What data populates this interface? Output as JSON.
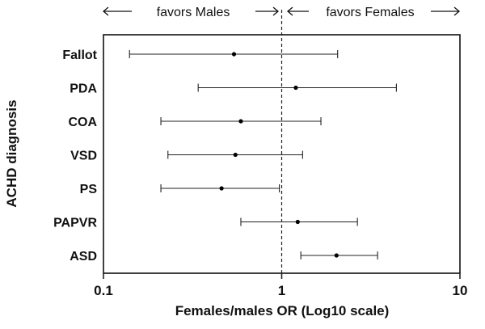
{
  "chart_data": {
    "type": "forest",
    "title": "",
    "xlabel": "Females/males OR (Log10 scale)",
    "ylabel": "ACHD diagnosis",
    "x_scale": "log10",
    "xlim": [
      0.1,
      10
    ],
    "x_ticks": [
      0.1,
      1,
      10
    ],
    "x_tick_labels": [
      "0.1",
      "1",
      "10"
    ],
    "reference_line": 1,
    "annotations": {
      "left": "favors Males",
      "right": "favors Females"
    },
    "categories": [
      "Fallot",
      "PDA",
      "COA",
      "VSD",
      "PS",
      "PAPVR",
      "ASD"
    ],
    "estimates": [
      0.54,
      1.2,
      0.59,
      0.55,
      0.46,
      1.23,
      2.03
    ],
    "ci_low": [
      0.14,
      0.34,
      0.21,
      0.23,
      0.21,
      0.59,
      1.28
    ],
    "ci_high": [
      2.06,
      4.4,
      1.66,
      1.31,
      0.97,
      2.66,
      3.45
    ]
  },
  "colors": {
    "line": "#222222",
    "point": "#000000",
    "text": "#111111"
  }
}
